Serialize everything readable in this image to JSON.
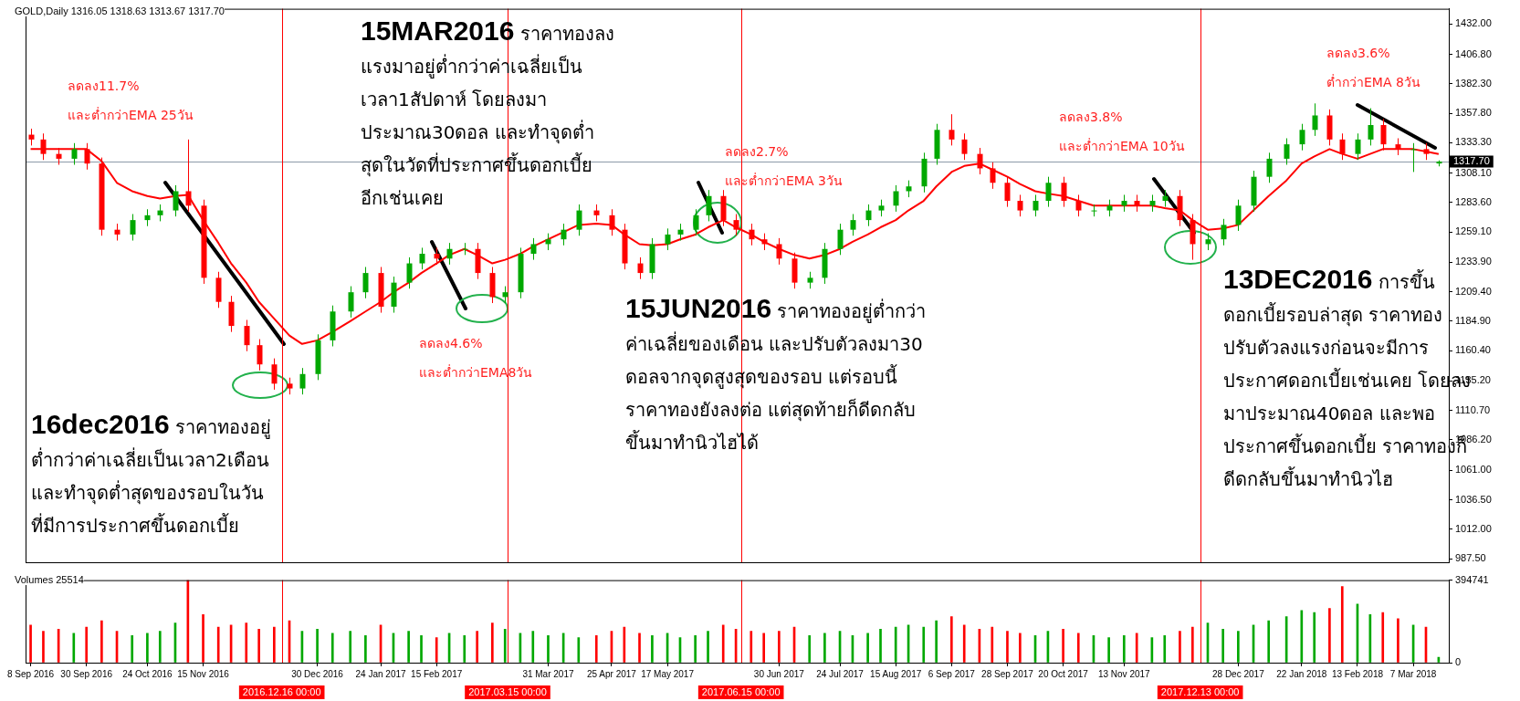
{
  "chart_data": [
    {
      "type": "candlestick",
      "title": "GOLD,Daily 1316.05 1318.63 1313.67 1317.70",
      "x": [
        "2016-09-08",
        "2016-09-13",
        "2016-09-19",
        "2016-09-25",
        "2016-09-30",
        "2016-10-06",
        "2016-10-12",
        "2016-10-18",
        "2016-10-24",
        "2016-10-29",
        "2016-11-04",
        "2016-11-09",
        "2016-11-15",
        "2016-11-21",
        "2016-11-26",
        "2016-12-02",
        "2016-12-07",
        "2016-12-13",
        "2016-12-19",
        "2016-12-24",
        "2016-12-30",
        "2017-01-05",
        "2017-01-12",
        "2017-01-18",
        "2017-01-24",
        "2017-01-29",
        "2017-02-04",
        "2017-02-09",
        "2017-02-15",
        "2017-02-20",
        "2017-02-26",
        "2017-03-03",
        "2017-03-09",
        "2017-03-14",
        "2017-03-20",
        "2017-03-25",
        "2017-03-31",
        "2017-04-06",
        "2017-04-12",
        "2017-04-19",
        "2017-04-25",
        "2017-04-30",
        "2017-05-06",
        "2017-05-11",
        "2017-05-17",
        "2017-05-22",
        "2017-05-28",
        "2017-06-02",
        "2017-06-08",
        "2017-06-13",
        "2017-06-19",
        "2017-06-24",
        "2017-06-30",
        "2017-07-06",
        "2017-07-12",
        "2017-07-18",
        "2017-07-24",
        "2017-07-29",
        "2017-08-04",
        "2017-08-09",
        "2017-08-15",
        "2017-08-20",
        "2017-08-26",
        "2017-08-31",
        "2017-09-06",
        "2017-09-11",
        "2017-09-17",
        "2017-09-22",
        "2017-09-28",
        "2017-10-03",
        "2017-10-09",
        "2017-10-14",
        "2017-10-20",
        "2017-10-26",
        "2017-11-01",
        "2017-11-07",
        "2017-11-13",
        "2017-11-18",
        "2017-11-24",
        "2017-11-29",
        "2017-12-05",
        "2017-12-10",
        "2017-12-16",
        "2017-12-22",
        "2017-12-28",
        "2018-01-03",
        "2018-01-09",
        "2018-01-16",
        "2018-01-22",
        "2018-01-27",
        "2018-02-02",
        "2018-02-07",
        "2018-02-13",
        "2018-02-18",
        "2018-02-23",
        "2018-03-01",
        "2018-03-07",
        "2018-03-12",
        "2018-03-17"
      ],
      "ohlc": [
        [
          1340,
          1345,
          1331,
          1336
        ],
        [
          1336,
          1341,
          1319,
          1324
        ],
        [
          1324,
          1329,
          1315,
          1320
        ],
        [
          1320,
          1333,
          1315,
          1328
        ],
        [
          1328,
          1333,
          1311,
          1316
        ],
        [
          1316,
          1321,
          1256,
          1261
        ],
        [
          1261,
          1266,
          1252,
          1257
        ],
        [
          1257,
          1274,
          1252,
          1269
        ],
        [
          1269,
          1278,
          1264,
          1273
        ],
        [
          1273,
          1282,
          1268,
          1277
        ],
        [
          1277,
          1298,
          1272,
          1293
        ],
        [
          1293,
          1336,
          1276,
          1281
        ],
        [
          1281,
          1286,
          1216,
          1221
        ],
        [
          1221,
          1226,
          1196,
          1201
        ],
        [
          1201,
          1206,
          1176,
          1181
        ],
        [
          1181,
          1186,
          1160,
          1165
        ],
        [
          1165,
          1170,
          1144,
          1149
        ],
        [
          1149,
          1154,
          1128,
          1133
        ],
        [
          1133,
          1138,
          1124,
          1129
        ],
        [
          1129,
          1146,
          1124,
          1141
        ],
        [
          1141,
          1174,
          1136,
          1169
        ],
        [
          1169,
          1198,
          1164,
          1193
        ],
        [
          1193,
          1214,
          1188,
          1209
        ],
        [
          1209,
          1230,
          1204,
          1225
        ],
        [
          1225,
          1230,
          1192,
          1197
        ],
        [
          1197,
          1222,
          1192,
          1217
        ],
        [
          1217,
          1238,
          1212,
          1233
        ],
        [
          1233,
          1246,
          1228,
          1241
        ],
        [
          1241,
          1246,
          1232,
          1237
        ],
        [
          1237,
          1250,
          1232,
          1245
        ],
        [
          1245,
          1250,
          1240,
          1245
        ],
        [
          1245,
          1250,
          1220,
          1225
        ],
        [
          1225,
          1230,
          1200,
          1205
        ],
        [
          1205,
          1214,
          1200,
          1209
        ],
        [
          1209,
          1246,
          1204,
          1241
        ],
        [
          1241,
          1254,
          1236,
          1249
        ],
        [
          1249,
          1258,
          1244,
          1253
        ],
        [
          1253,
          1266,
          1248,
          1261
        ],
        [
          1261,
          1282,
          1256,
          1277
        ],
        [
          1277,
          1282,
          1268,
          1273
        ],
        [
          1273,
          1278,
          1256,
          1261
        ],
        [
          1261,
          1266,
          1228,
          1233
        ],
        [
          1233,
          1238,
          1220,
          1225
        ],
        [
          1225,
          1254,
          1220,
          1249
        ],
        [
          1249,
          1262,
          1244,
          1257
        ],
        [
          1257,
          1266,
          1252,
          1261
        ],
        [
          1261,
          1278,
          1256,
          1273
        ],
        [
          1273,
          1294,
          1268,
          1289
        ],
        [
          1289,
          1294,
          1264,
          1269
        ],
        [
          1269,
          1274,
          1256,
          1261
        ],
        [
          1261,
          1266,
          1248,
          1253
        ],
        [
          1253,
          1258,
          1244,
          1249
        ],
        [
          1249,
          1254,
          1232,
          1237
        ],
        [
          1237,
          1242,
          1212,
          1217
        ],
        [
          1217,
          1226,
          1212,
          1221
        ],
        [
          1221,
          1250,
          1216,
          1245
        ],
        [
          1245,
          1266,
          1240,
          1261
        ],
        [
          1261,
          1274,
          1256,
          1269
        ],
        [
          1269,
          1282,
          1264,
          1277
        ],
        [
          1277,
          1286,
          1272,
          1281
        ],
        [
          1281,
          1298,
          1276,
          1293
        ],
        [
          1293,
          1302,
          1288,
          1297
        ],
        [
          1297,
          1325,
          1292,
          1320
        ],
        [
          1320,
          1349,
          1315,
          1344
        ],
        [
          1344,
          1357,
          1331,
          1336
        ],
        [
          1336,
          1341,
          1319,
          1324
        ],
        [
          1324,
          1329,
          1307,
          1312
        ],
        [
          1312,
          1317,
          1295,
          1300
        ],
        [
          1300,
          1305,
          1280,
          1285
        ],
        [
          1285,
          1290,
          1272,
          1277
        ],
        [
          1277,
          1290,
          1272,
          1285
        ],
        [
          1285,
          1305,
          1280,
          1300
        ],
        [
          1300,
          1305,
          1280,
          1285
        ],
        [
          1285,
          1290,
          1272,
          1277
        ],
        [
          1277,
          1282,
          1272,
          1277
        ],
        [
          1277,
          1286,
          1272,
          1281
        ],
        [
          1281,
          1290,
          1276,
          1285
        ],
        [
          1285,
          1290,
          1276,
          1281
        ],
        [
          1281,
          1290,
          1276,
          1285
        ],
        [
          1285,
          1294,
          1280,
          1289
        ],
        [
          1289,
          1294,
          1264,
          1269
        ],
        [
          1269,
          1274,
          1236,
          1249
        ],
        [
          1249,
          1258,
          1244,
          1253
        ],
        [
          1253,
          1270,
          1248,
          1265
        ],
        [
          1265,
          1286,
          1260,
          1281
        ],
        [
          1281,
          1310,
          1276,
          1305
        ],
        [
          1305,
          1325,
          1300,
          1320
        ],
        [
          1320,
          1337,
          1315,
          1332
        ],
        [
          1332,
          1349,
          1327,
          1344
        ],
        [
          1344,
          1366,
          1339,
          1356
        ],
        [
          1356,
          1361,
          1331,
          1336
        ],
        [
          1336,
          1341,
          1319,
          1324
        ],
        [
          1324,
          1341,
          1319,
          1336
        ],
        [
          1336,
          1362,
          1331,
          1348
        ],
        [
          1348,
          1353,
          1327,
          1332
        ],
        [
          1332,
          1337,
          1323,
          1328
        ],
        [
          1328,
          1333,
          1309,
          1328
        ],
        [
          1328,
          1333,
          1319,
          1324
        ],
        [
          1316.05,
          1318.63,
          1313.67,
          1317.7
        ]
      ],
      "colors": [
        "#ff0000",
        "#ff0000",
        "#ff0000",
        "#00a800",
        "#ff0000",
        "#ff0000",
        "#ff0000",
        "#00a800",
        "#00a800",
        "#00a800",
        "#00a800",
        "#ff0000",
        "#ff0000",
        "#ff0000",
        "#ff0000",
        "#ff0000",
        "#ff0000",
        "#ff0000",
        "#ff0000",
        "#00a800",
        "#00a800",
        "#00a800",
        "#00a800",
        "#00a800",
        "#ff0000",
        "#00a800",
        "#00a800",
        "#00a800",
        "#ff0000",
        "#00a800",
        "#00a800",
        "#ff0000",
        "#ff0000",
        "#00a800",
        "#00a800",
        "#00a800",
        "#00a800",
        "#00a800",
        "#00a800",
        "#ff0000",
        "#ff0000",
        "#ff0000",
        "#ff0000",
        "#00a800",
        "#00a800",
        "#00a800",
        "#00a800",
        "#00a800",
        "#ff0000",
        "#ff0000",
        "#ff0000",
        "#ff0000",
        "#ff0000",
        "#ff0000",
        "#00a800",
        "#00a800",
        "#00a800",
        "#00a800",
        "#00a800",
        "#00a800",
        "#00a800",
        "#00a800",
        "#00a800",
        "#00a800",
        "#ff0000",
        "#ff0000",
        "#ff0000",
        "#ff0000",
        "#ff0000",
        "#ff0000",
        "#00a800",
        "#00a800",
        "#ff0000",
        "#ff0000",
        "#00a800",
        "#00a800",
        "#00a800",
        "#ff0000",
        "#00a800",
        "#00a800",
        "#ff0000",
        "#ff0000",
        "#00a800",
        "#00a800",
        "#00a800",
        "#00a800",
        "#00a800",
        "#00a800",
        "#00a800",
        "#00a800",
        "#ff0000",
        "#ff0000",
        "#00a800",
        "#00a800",
        "#ff0000",
        "#ff0000",
        "#00a800",
        "#ff0000",
        "#00a800"
      ],
      "series": [
        {
          "type": "line",
          "color": "#ff0000",
          "values": [
            1328,
            1328,
            1328,
            1328,
            1328,
            1318,
            1300,
            1293,
            1289,
            1287,
            1289,
            1290,
            1269,
            1250,
            1233,
            1217,
            1201,
            1187,
            1173,
            1166,
            1169,
            1176,
            1185,
            1193,
            1201,
            1209,
            1217,
            1225,
            1233,
            1240,
            1245,
            1240,
            1233,
            1236,
            1241,
            1247,
            1253,
            1259,
            1265,
            1266,
            1265,
            1257,
            1249,
            1248,
            1249,
            1253,
            1257,
            1263,
            1269,
            1263,
            1257,
            1251,
            1245,
            1240,
            1237,
            1240,
            1245,
            1251,
            1257,
            1263,
            1269,
            1277,
            1285,
            1297,
            1309,
            1314,
            1316,
            1311,
            1305,
            1299,
            1293,
            1291,
            1289,
            1285,
            1281,
            1281,
            1281,
            1281,
            1281,
            1279,
            1277,
            1269,
            1261,
            1262,
            1265,
            1277,
            1289,
            1302,
            1316,
            1322,
            1328,
            1324,
            1320,
            1324,
            1328,
            1328,
            1328,
            1326,
            1324
          ]
        }
      ],
      "xlim": [
        "2016-09-06",
        "2018-03-21"
      ],
      "ylim": [
        984.5,
        1444.7
      ],
      "yticks": [
        {
          "value": 987.5,
          "label": "987.50"
        },
        {
          "value": 1012,
          "label": "1012.00"
        },
        {
          "value": 1036.5,
          "label": "1036.50"
        },
        {
          "value": 1061,
          "label": "1061.00"
        },
        {
          "value": 1086.2,
          "label": "1086.20"
        },
        {
          "value": 1110.7,
          "label": "1110.70"
        },
        {
          "value": 1135.2,
          "label": "1135.20"
        },
        {
          "value": 1160.4,
          "label": "1160.40"
        },
        {
          "value": 1184.9,
          "label": "1184.90"
        },
        {
          "value": 1209.4,
          "label": "1209.40"
        },
        {
          "value": 1233.9,
          "label": "1233.90"
        },
        {
          "value": 1259.1,
          "label": "1259.10"
        },
        {
          "value": 1283.6,
          "label": "1283.60"
        },
        {
          "value": 1308.1,
          "label": "1308.10"
        },
        {
          "value": 1333.3,
          "label": "1333.30"
        },
        {
          "value": 1357.8,
          "label": "1357.80"
        },
        {
          "value": 1382.3,
          "label": "1382.30"
        },
        {
          "value": 1406.8,
          "label": "1406.80"
        },
        {
          "value": 1432,
          "label": "1432.00"
        }
      ],
      "tick_labels": "y",
      "ref_lines": [
        {
          "axis": "y",
          "value": 1317.7,
          "label": "1317.70",
          "color": "#8c9aa8"
        },
        {
          "axis": "x",
          "value": "2016-12-16",
          "color": "#ff0000"
        },
        {
          "axis": "x",
          "value": "2017-03-15",
          "color": "#ff0000"
        },
        {
          "axis": "x",
          "value": "2017-06-15",
          "color": "#ff0000"
        },
        {
          "axis": "x",
          "value": "2017-12-13",
          "color": "#ff0000"
        }
      ],
      "annotations": [
        "ลดลง11.7%\nและต่ำกว่าEMA 25วัน",
        "16dec2016 ราคาทองอยู่\nต่ำกว่าค่าเฉลี่ยเป็นเวลา2เดือน\nและทำจุดต่ำสุดของรอบในวัน\nที่มีการประกาศขึ้นดอกเบี้ย",
        "15MAR2016 ราคาทองลง\nแรงมาอยู่ต่ำกว่าค่าเฉลี่ยเป็น\nเวลา1สัปดาห์ โดยลงมา\nประมาณ30ดอล และทำจุดต่ำ\nสุดในวัดที่ประกาศขึ้นดอกเบี้ย\nอีกเช่นเคย",
        "ลดลง4.6%\nและต่ำกว่าEMA8วัน",
        "ลดลง2.7%\nและต่ำกว่าEMA 3วัน",
        "15JUN2016 ราคาทองอยู่ต่ำกว่า\nค่าเฉลี่ยของเดือน และปรับตัวลงมา30\nดอลจากจุดสูงสุดของรอบ แต่รอบนี้\nราคาทองยังลงต่อ แต่สุดท้ายก็ดีดกลับ\nขึ้นมาทำนิวไฮได้",
        "ลดลง3.8%\nและต่ำกว่าEMA 10วัน",
        "13DEC2016 การขึ้น\nดอกเบี้ยรอบล่าสุด ราคาทอง\nปรับตัวลงแรงก่อนจะมีการ\nประกาศดอกเบี้ยเช่นเคย โดยลง\nมาประมาณ40ดอล และพอ\nประกาศขึ้นดอกเบี้ย ราคาทองก็\nดีดกลับขึ้นมาทำนิวไฮ",
        "ลดลง3.6%\nต่ำกว่าEMA 8วัน"
      ]
    },
    {
      "type": "bar",
      "title": "Volumes 25514",
      "x": [
        "2016-09-08",
        "2016-09-13",
        "2016-09-19",
        "2016-09-25",
        "2016-09-30",
        "2016-10-06",
        "2016-10-12",
        "2016-10-18",
        "2016-10-24",
        "2016-10-29",
        "2016-11-04",
        "2016-11-09",
        "2016-11-15",
        "2016-11-21",
        "2016-11-26",
        "2016-12-02",
        "2016-12-07",
        "2016-12-13",
        "2016-12-19",
        "2016-12-24",
        "2016-12-30",
        "2017-01-05",
        "2017-01-12",
        "2017-01-18",
        "2017-01-24",
        "2017-01-29",
        "2017-02-04",
        "2017-02-09",
        "2017-02-15",
        "2017-02-20",
        "2017-02-26",
        "2017-03-03",
        "2017-03-09",
        "2017-03-14",
        "2017-03-20",
        "2017-03-25",
        "2017-03-31",
        "2017-04-06",
        "2017-04-12",
        "2017-04-19",
        "2017-04-25",
        "2017-04-30",
        "2017-05-06",
        "2017-05-11",
        "2017-05-17",
        "2017-05-22",
        "2017-05-28",
        "2017-06-02",
        "2017-06-08",
        "2017-06-13",
        "2017-06-19",
        "2017-06-24",
        "2017-06-30",
        "2017-07-06",
        "2017-07-12",
        "2017-07-18",
        "2017-07-24",
        "2017-07-29",
        "2017-08-04",
        "2017-08-09",
        "2017-08-15",
        "2017-08-20",
        "2017-08-26",
        "2017-08-31",
        "2017-09-06",
        "2017-09-11",
        "2017-09-17",
        "2017-09-22",
        "2017-09-28",
        "2017-10-03",
        "2017-10-09",
        "2017-10-14",
        "2017-10-20",
        "2017-10-26",
        "2017-11-01",
        "2017-11-07",
        "2017-11-13",
        "2017-11-18",
        "2017-11-24",
        "2017-11-29",
        "2017-12-05",
        "2017-12-10",
        "2017-12-16",
        "2017-12-22",
        "2017-12-28",
        "2018-01-03",
        "2018-01-09",
        "2018-01-16",
        "2018-01-22",
        "2018-01-27",
        "2018-02-02",
        "2018-02-07",
        "2018-02-13",
        "2018-02-18",
        "2018-02-23",
        "2018-03-01",
        "2018-03-07",
        "2018-03-12",
        "2018-03-17"
      ],
      "values": [
        180000,
        150000,
        160000,
        140000,
        170000,
        200000,
        150000,
        130000,
        140000,
        150000,
        190000,
        394741,
        230000,
        170000,
        180000,
        190000,
        160000,
        170000,
        200000,
        150000,
        160000,
        140000,
        150000,
        130000,
        180000,
        140000,
        150000,
        130000,
        120000,
        140000,
        130000,
        150000,
        190000,
        160000,
        140000,
        150000,
        130000,
        140000,
        120000,
        130000,
        150000,
        170000,
        140000,
        130000,
        140000,
        120000,
        130000,
        150000,
        180000,
        160000,
        150000,
        140000,
        150000,
        170000,
        130000,
        140000,
        150000,
        130000,
        140000,
        160000,
        170000,
        180000,
        170000,
        200000,
        220000,
        180000,
        160000,
        170000,
        150000,
        140000,
        130000,
        150000,
        160000,
        140000,
        130000,
        120000,
        130000,
        140000,
        120000,
        130000,
        150000,
        170000,
        190000,
        160000,
        150000,
        180000,
        200000,
        220000,
        250000,
        240000,
        260000,
        364000,
        280000,
        230000,
        240000,
        210000,
        180000,
        170000,
        25514
      ],
      "colors": [
        "#ff0000",
        "#ff0000",
        "#ff0000",
        "#00a800",
        "#ff0000",
        "#ff0000",
        "#ff0000",
        "#00a800",
        "#00a800",
        "#00a800",
        "#00a800",
        "#ff0000",
        "#ff0000",
        "#ff0000",
        "#ff0000",
        "#ff0000",
        "#ff0000",
        "#ff0000",
        "#ff0000",
        "#00a800",
        "#00a800",
        "#00a800",
        "#00a800",
        "#00a800",
        "#ff0000",
        "#00a800",
        "#00a800",
        "#00a800",
        "#ff0000",
        "#00a800",
        "#00a800",
        "#ff0000",
        "#ff0000",
        "#00a800",
        "#00a800",
        "#00a800",
        "#00a800",
        "#00a800",
        "#00a800",
        "#ff0000",
        "#ff0000",
        "#ff0000",
        "#ff0000",
        "#00a800",
        "#00a800",
        "#00a800",
        "#00a800",
        "#00a800",
        "#ff0000",
        "#ff0000",
        "#ff0000",
        "#ff0000",
        "#ff0000",
        "#ff0000",
        "#00a800",
        "#00a800",
        "#00a800",
        "#00a800",
        "#00a800",
        "#00a800",
        "#00a800",
        "#00a800",
        "#00a800",
        "#00a800",
        "#ff0000",
        "#ff0000",
        "#ff0000",
        "#ff0000",
        "#ff0000",
        "#ff0000",
        "#00a800",
        "#00a800",
        "#ff0000",
        "#ff0000",
        "#00a800",
        "#00a800",
        "#00a800",
        "#ff0000",
        "#00a800",
        "#00a800",
        "#ff0000",
        "#ff0000",
        "#00a800",
        "#00a800",
        "#00a800",
        "#00a800",
        "#00a800",
        "#00a800",
        "#00a800",
        "#00a800",
        "#ff0000",
        "#ff0000",
        "#00a800",
        "#00a800",
        "#ff0000",
        "#ff0000",
        "#00a800",
        "#ff0000",
        "#00a800"
      ],
      "xlim": [
        "2016-09-06",
        "2018-03-21"
      ],
      "xticks": [
        {
          "value": "2016-09-08",
          "label": "8 Sep 2016"
        },
        {
          "value": "2016-09-30",
          "label": "30 Sep 2016"
        },
        {
          "value": "2016-10-24",
          "label": "24 Oct 2016"
        },
        {
          "value": "2016-11-15",
          "label": "15 Nov 2016"
        },
        {
          "value": "2016-12-30",
          "label": "30 Dec 2016"
        },
        {
          "value": "2017-01-24",
          "label": "24 Jan 2017"
        },
        {
          "value": "2017-02-15",
          "label": "15 Feb 2017"
        },
        {
          "value": "2017-03-31",
          "label": "31 Mar 2017"
        },
        {
          "value": "2017-04-25",
          "label": "25 Apr 2017"
        },
        {
          "value": "2017-05-17",
          "label": "17 May 2017"
        },
        {
          "value": "2017-06-30",
          "label": "30 Jun 2017"
        },
        {
          "value": "2017-07-24",
          "label": "24 Jul 2017"
        },
        {
          "value": "2017-08-15",
          "label": "15 Aug 2017"
        },
        {
          "value": "2017-09-06",
          "label": "6 Sep 2017"
        },
        {
          "value": "2017-09-28",
          "label": "28 Sep 2017"
        },
        {
          "value": "2017-10-20",
          "label": "20 Oct 2017"
        },
        {
          "value": "2017-11-13",
          "label": "13 Nov 2017"
        },
        {
          "value": "2017-12-28",
          "label": "28 Dec 2017"
        },
        {
          "value": "2018-01-22",
          "label": "22 Jan 2018"
        },
        {
          "value": "2018-02-13",
          "label": "13 Feb 2018"
        },
        {
          "value": "2018-03-07",
          "label": "7 Mar 2018"
        }
      ],
      "ylim": [
        0,
        394741
      ],
      "yticks": [
        0,
        394741
      ],
      "ref_lines": [
        {
          "axis": "x",
          "value": "2016-12-16",
          "label": "2016.12.16 00:00",
          "color": "#ff0000"
        },
        {
          "axis": "x",
          "value": "2017-03-15",
          "label": "2017.03.15 00:00",
          "color": "#ff0000"
        },
        {
          "axis": "x",
          "value": "2017-06-15",
          "label": "2017.06.15 00:00",
          "color": "#ff0000"
        },
        {
          "axis": "x",
          "value": "2017-12-13",
          "label": "2017.12.13 00:00",
          "color": "#ff0000"
        }
      ]
    }
  ]
}
